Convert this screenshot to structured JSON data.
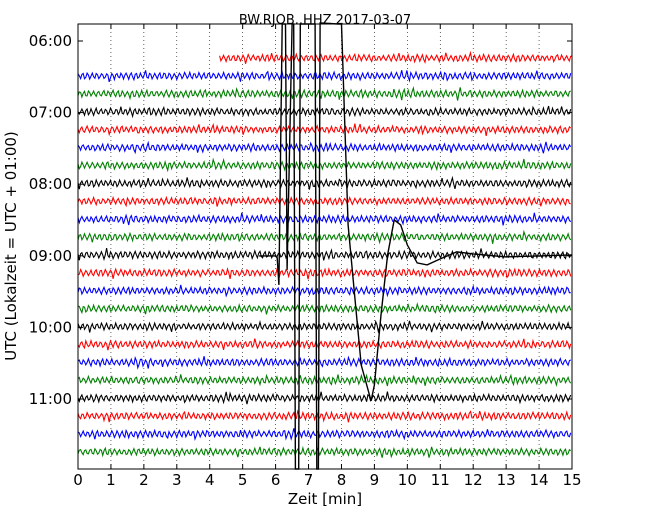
{
  "chart_data": {
    "type": "line",
    "title": "BW.RJOB..HHZ 2017-03-07",
    "xlabel": "Zeit  [min]",
    "ylabel": "UTC (Lokalzeit = UTC + 01:00)",
    "xlim": [
      0,
      15
    ],
    "x_ticks": [
      0,
      1,
      2,
      3,
      4,
      5,
      6,
      7,
      8,
      9,
      10,
      11,
      12,
      13,
      14,
      15
    ],
    "x_tick_labels": [
      "0",
      "1",
      "2",
      "3",
      "4",
      "5",
      "6",
      "7",
      "8",
      "9",
      "10",
      "11",
      "12",
      "13",
      "14",
      "15"
    ],
    "y_tick_labels": [
      "06:00",
      "07:00",
      "08:00",
      "09:00",
      "10:00",
      "11:00"
    ],
    "grid": "vertical dotted at each minute",
    "trace_interval_min": 15,
    "trace_color_cycle": [
      "#ff0000",
      "#0000ff",
      "#008000",
      "#000000"
    ],
    "traces": [
      {
        "start": "06:00",
        "color": "#ff0000",
        "data_starts_min": 4.3
      },
      {
        "start": "06:15",
        "color": "#0000ff"
      },
      {
        "start": "06:30",
        "color": "#008000"
      },
      {
        "start": "06:45",
        "color": "#000000"
      },
      {
        "start": "07:00",
        "color": "#ff0000"
      },
      {
        "start": "07:15",
        "color": "#0000ff"
      },
      {
        "start": "07:30",
        "color": "#008000"
      },
      {
        "start": "07:45",
        "color": "#000000"
      },
      {
        "start": "08:00",
        "color": "#ff0000"
      },
      {
        "start": "08:15",
        "color": "#0000ff"
      },
      {
        "start": "08:30",
        "color": "#008000"
      },
      {
        "start": "08:45",
        "color": "#000000",
        "event": "earthquake arrival",
        "event_start_min": 6.1
      },
      {
        "start": "09:00",
        "color": "#ff0000"
      },
      {
        "start": "09:15",
        "color": "#0000ff"
      },
      {
        "start": "09:30",
        "color": "#008000"
      },
      {
        "start": "09:45",
        "color": "#000000"
      },
      {
        "start": "10:00",
        "color": "#ff0000"
      },
      {
        "start": "10:15",
        "color": "#0000ff"
      },
      {
        "start": "10:30",
        "color": "#008000"
      },
      {
        "start": "10:45",
        "color": "#000000"
      },
      {
        "start": "11:00",
        "color": "#ff0000"
      },
      {
        "start": "11:15",
        "color": "#0000ff"
      },
      {
        "start": "11:30",
        "color": "#008000"
      }
    ]
  }
}
